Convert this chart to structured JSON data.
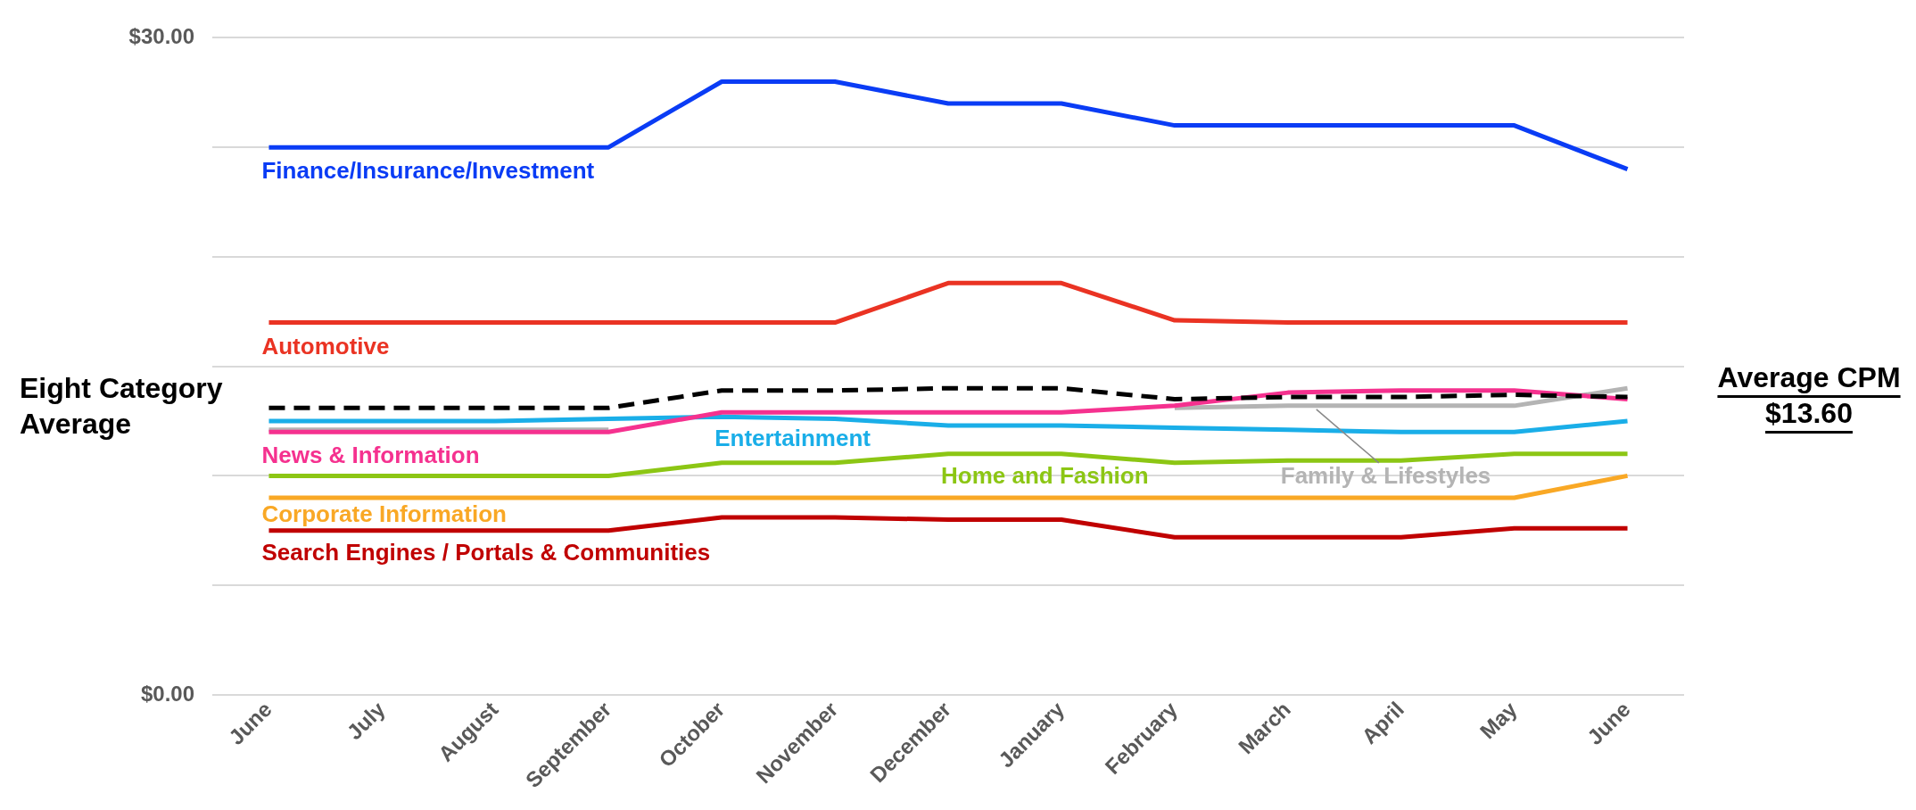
{
  "chart_data": {
    "type": "line",
    "categories": [
      "June",
      "July",
      "August",
      "September",
      "October",
      "November",
      "December",
      "January",
      "February",
      "March",
      "April",
      "May",
      "June"
    ],
    "series": [
      {
        "name": "Finance/Insurance/Investment",
        "color": "#0a3cf5",
        "values": [
          25,
          25,
          25,
          25,
          28,
          28,
          27,
          27,
          26,
          26,
          26,
          26,
          24
        ]
      },
      {
        "name": "Automotive",
        "color": "#ea3323",
        "values": [
          17,
          17,
          17,
          17,
          17,
          17,
          18.8,
          18.8,
          17.1,
          17,
          17,
          17,
          17
        ]
      },
      {
        "name": "Family & Lifestyles",
        "color": "#b4b4b4",
        "values": [
          12.1,
          12.1,
          12.1,
          12.1,
          null,
          null,
          null,
          null,
          13.1,
          13.2,
          13.2,
          13.2,
          14.0
        ]
      },
      {
        "name": "Entertainment",
        "color": "#1aaee8",
        "values": [
          12.5,
          12.5,
          12.5,
          12.6,
          12.7,
          12.6,
          12.3,
          12.3,
          12.2,
          12.1,
          12.0,
          12.0,
          12.5
        ]
      },
      {
        "name": "News & Information",
        "color": "#f5318f",
        "values": [
          12.0,
          12.0,
          12.0,
          12.0,
          12.9,
          12.9,
          12.9,
          12.9,
          13.2,
          13.8,
          13.9,
          13.9,
          13.5
        ]
      },
      {
        "name": "Home and Fashion",
        "color": "#8cc614",
        "values": [
          10,
          10,
          10,
          10,
          10.6,
          10.6,
          11,
          11,
          10.6,
          10.7,
          10.7,
          11,
          11
        ]
      },
      {
        "name": "Corporate Information",
        "color": "#f9a825",
        "values": [
          9,
          9,
          9,
          9,
          9,
          9,
          9,
          9,
          9,
          9,
          9,
          9,
          10
        ]
      },
      {
        "name": "Search Engines / Portals & Communities",
        "color": "#c00000",
        "values": [
          7.5,
          7.5,
          7.5,
          7.5,
          8.1,
          8.1,
          8,
          8,
          7.2,
          7.2,
          7.2,
          7.6,
          7.6
        ]
      },
      {
        "name": "Eight Category Average",
        "color": "#000000",
        "line_style": "dashed",
        "values": [
          13.1,
          13.1,
          13.1,
          13.1,
          13.9,
          13.9,
          14,
          14,
          13.5,
          13.6,
          13.6,
          13.7,
          13.6
        ]
      }
    ],
    "annotations": [
      "Average CPM $13.60"
    ],
    "ylim": [
      0,
      30
    ],
    "yticks": [
      {
        "value": 0,
        "label": "$0.00"
      },
      {
        "value": 5,
        "label": null
      },
      {
        "value": 10,
        "label": null
      },
      {
        "value": 15,
        "label": null
      },
      {
        "value": 20,
        "label": null
      },
      {
        "value": 25,
        "label": null
      },
      {
        "value": 30,
        "label": "$30.00"
      }
    ],
    "grid": "y",
    "legend": false,
    "marker": "none",
    "line_style": "solid"
  }
}
